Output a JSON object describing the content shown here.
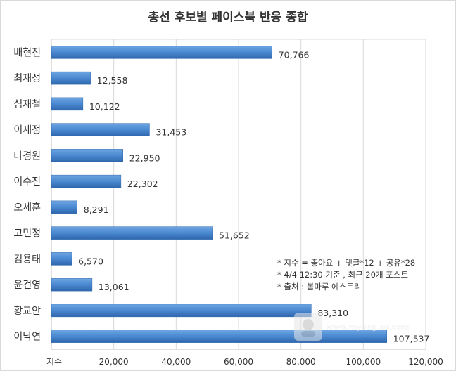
{
  "chart_data": {
    "type": "bar",
    "orientation": "horizontal",
    "title": "총선 후보별 페이스북 반응 종합",
    "xlabel": "지수",
    "ylabel": "",
    "xlim": [
      0,
      120000
    ],
    "x_ticks": [
      "지수",
      "20,000",
      "40,000",
      "60,000",
      "80,000",
      "100,000",
      "120,000"
    ],
    "grid": true,
    "bar_color": "#4a88d0",
    "categories": [
      "배현진",
      "최재성",
      "심재철",
      "이재정",
      "나경원",
      "이수진",
      "오세훈",
      "고민정",
      "김용태",
      "윤건영",
      "황교안",
      "이낙연"
    ],
    "values": [
      70766,
      12558,
      10122,
      31453,
      22950,
      22302,
      8291,
      51652,
      6570,
      13061,
      83310,
      107537
    ],
    "value_labels": [
      "70,766",
      "12,558",
      "10,122",
      "31,453",
      "22,950",
      "22,302",
      "8,291",
      "51,652",
      "6,570",
      "13,061",
      "83,310",
      "107,537"
    ]
  },
  "notes": [
    "* 지수 = 좋아요 + 댓글*12 + 공유*28",
    "* 4/4 12:30 기준 , 최근 20개 포스트",
    "* 출처 : 봄마루 에스트리"
  ],
  "watermark": "www.myong.so.com"
}
